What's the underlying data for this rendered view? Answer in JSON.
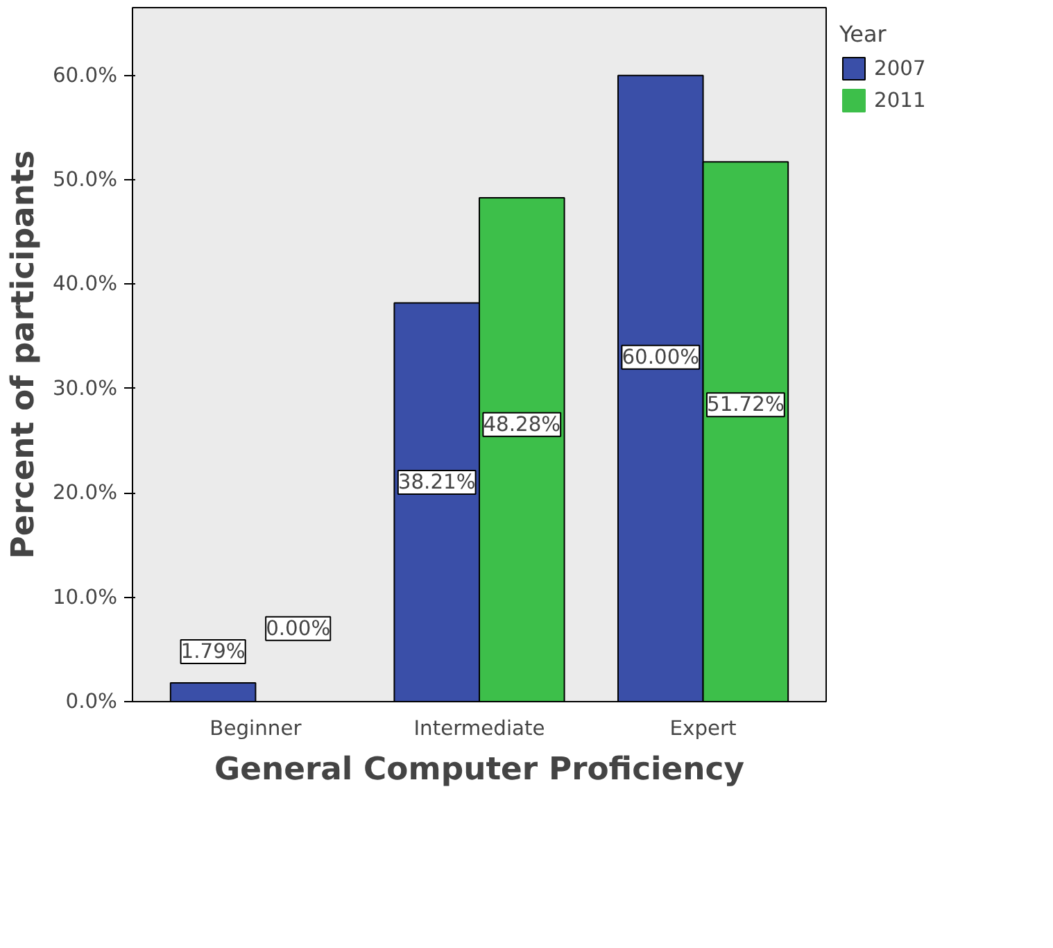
{
  "chart_data": {
    "type": "bar",
    "xlabel": "General Computer Proficiency",
    "ylabel": "Percent of participants",
    "legend_title": "Year",
    "legend": "right",
    "grid": false,
    "categories": [
      "Beginner",
      "Intermediate",
      "Expert"
    ],
    "ylim": [
      0,
      66.5
    ],
    "yticks": [
      {
        "value": 0,
        "label": "0.0%"
      },
      {
        "value": 10,
        "label": "10.0%"
      },
      {
        "value": 20,
        "label": "20.0%"
      },
      {
        "value": 30,
        "label": "30.0%"
      },
      {
        "value": 40,
        "label": "40.0%"
      },
      {
        "value": 50,
        "label": "50.0%"
      },
      {
        "value": 60,
        "label": "60.0%"
      }
    ],
    "series": [
      {
        "name": "2007",
        "color": "#3a4fa8",
        "values": [
          1.79,
          38.21,
          60.0
        ],
        "value_labels": [
          "1.79%",
          "38.21%",
          "60.00%"
        ]
      },
      {
        "name": "2011",
        "color": "#3dbf4a",
        "values": [
          0.0,
          48.28,
          51.72
        ],
        "value_labels": [
          "0.00%",
          "48.28%",
          "51.72%"
        ]
      }
    ]
  }
}
